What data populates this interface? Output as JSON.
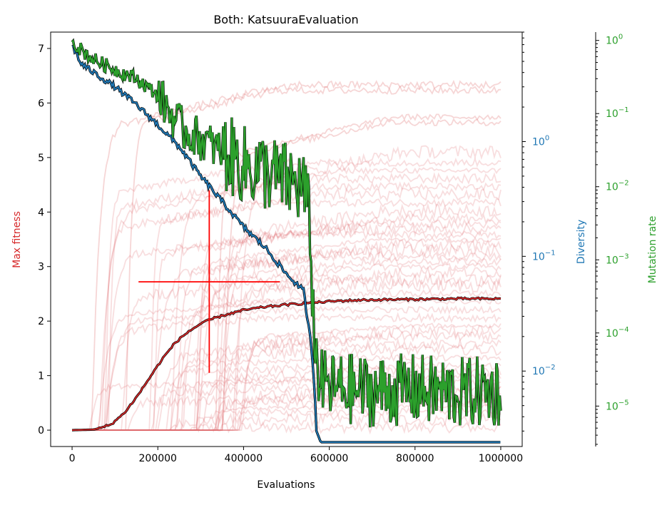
{
  "chart_data": {
    "type": "line",
    "title": "Both: KatsuuraEvaluation",
    "xlabel": "Evaluations",
    "ylabel": "Max fitness",
    "ylabel_right": "Diversity",
    "ylabel_right2": "Mutation rate",
    "xlim": [
      -50000,
      1050000
    ],
    "ylim": [
      -0.3,
      7.3
    ],
    "diversity_ylim": [
      0.0022,
      9.0
    ],
    "diversity_scale": "log",
    "mutation_ylim": [
      2.8e-06,
      1.3
    ],
    "mutation_scale": "log",
    "x_ticks": [
      0,
      200000,
      400000,
      600000,
      800000,
      1000000
    ],
    "x_tick_labels": [
      "0",
      "200000",
      "400000",
      "600000",
      "800000",
      "1000000"
    ],
    "y_ticks": [
      0,
      1,
      2,
      3,
      4,
      5,
      6,
      7
    ],
    "y_tick_labels": [
      "0",
      "1",
      "2",
      "3",
      "4",
      "5",
      "6",
      "7"
    ],
    "diversity_ticks": [
      0.01,
      0.1,
      1
    ],
    "diversity_tick_labels": [
      "10",
      "10",
      "10"
    ],
    "diversity_tick_exponents": [
      "−2",
      "−1",
      "0"
    ],
    "mutation_ticks": [
      1e-05,
      0.0001,
      0.001,
      0.01,
      0.1,
      1
    ],
    "mutation_tick_labels": [
      "10",
      "10",
      "10",
      "10",
      "10",
      "10"
    ],
    "mutation_tick_exponents": [
      "−5",
      "−4",
      "−3",
      "−2",
      "−1",
      "0"
    ],
    "colors": {
      "fitness": "#d62728",
      "fitness_runs": "#e06b6c",
      "diversity": "#1f77b4",
      "mutation": "#2ca02c",
      "crosshair": "#ff0000"
    },
    "run_plateaus": [
      0.05,
      0.2,
      0.35,
      0.45,
      0.55,
      0.6,
      0.7,
      0.8,
      0.9,
      1.0,
      1.1,
      1.2,
      1.35,
      1.5,
      1.6,
      1.75,
      1.85,
      1.95,
      2.1,
      2.25,
      2.4,
      2.55,
      2.7,
      2.8,
      2.95,
      3.05,
      3.15,
      3.25,
      3.35,
      3.45,
      3.55,
      3.65,
      3.75,
      3.85,
      3.95,
      4.1,
      4.25,
      4.4,
      4.55,
      4.7,
      4.85,
      5.0,
      5.2,
      5.75,
      5.85,
      6.35,
      6.45
    ],
    "mean_fitness": {
      "x": [
        0,
        50000,
        70000,
        90000,
        120000,
        150000,
        180000,
        210000,
        240000,
        270000,
        300000,
        330000,
        360000,
        400000,
        450000,
        500000,
        550000,
        600000,
        650000,
        700000,
        800000,
        900000,
        1000000
      ],
      "y": [
        0,
        0.01,
        0.05,
        0.1,
        0.3,
        0.6,
        0.95,
        1.3,
        1.6,
        1.8,
        1.95,
        2.05,
        2.12,
        2.2,
        2.26,
        2.3,
        2.33,
        2.36,
        2.38,
        2.39,
        2.4,
        2.41,
        2.41
      ]
    },
    "diversity": {
      "x": [
        0,
        20000,
        50000,
        100000,
        150000,
        200000,
        250000,
        300000,
        350000,
        400000,
        450000,
        500000,
        540000,
        555000,
        565000,
        570000,
        580000,
        600000,
        700000,
        800000,
        900000,
        1000000
      ],
      "y": [
        7.0,
        4.8,
        4.0,
        3.0,
        2.1,
        1.4,
        0.9,
        0.5,
        0.3,
        0.18,
        0.12,
        0.07,
        0.05,
        0.02,
        0.008,
        0.003,
        0.0024,
        0.0024,
        0.0024,
        0.0024,
        0.0024,
        0.0024
      ]
    },
    "mutation_rate": {
      "x": [
        0,
        20000,
        50000,
        100000,
        150000,
        200000,
        230000,
        260000,
        300000,
        350000,
        400000,
        450000,
        500000,
        540000,
        555000,
        565000,
        580000,
        600000,
        700000,
        800000,
        900000,
        1000000
      ],
      "y": [
        1.0,
        0.75,
        0.55,
        0.4,
        0.3,
        0.18,
        0.1,
        0.06,
        0.045,
        0.03,
        0.02,
        0.016,
        0.012,
        0.01,
        0.003,
        7e-05,
        2e-05,
        1.8e-05,
        1.6e-05,
        1.7e-05,
        1.5e-05,
        1.6e-05
      ]
    },
    "crosshair": {
      "x": 320000,
      "y": 2.72,
      "x_range": [
        155000,
        485000
      ],
      "y_range": [
        1.05,
        4.4
      ]
    }
  }
}
